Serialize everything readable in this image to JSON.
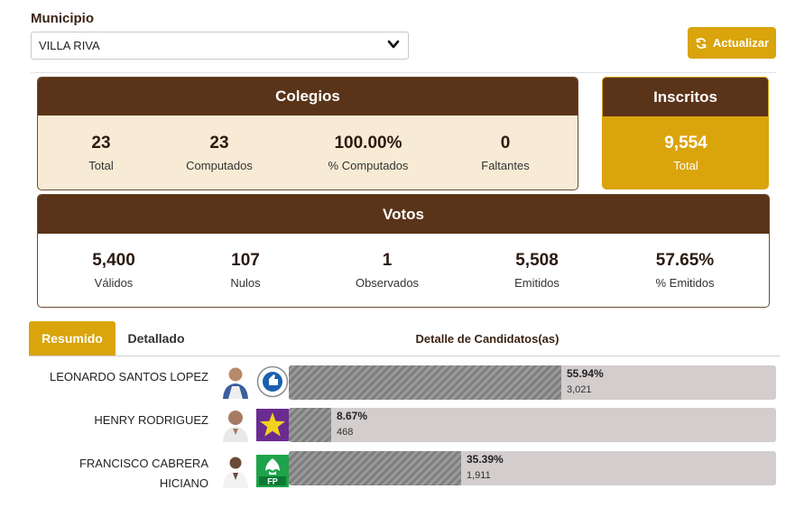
{
  "filter": {
    "label": "Municipio",
    "selected": "VILLA RIVA"
  },
  "refresh_label": "Actualizar",
  "colegios": {
    "title": "Colegios",
    "stats": [
      {
        "value": "23",
        "label": "Total"
      },
      {
        "value": "23",
        "label": "Computados"
      },
      {
        "value": "100.00%",
        "label": "% Computados"
      },
      {
        "value": "0",
        "label": "Faltantes"
      }
    ]
  },
  "inscritos": {
    "title": "Inscritos",
    "value": "9,554",
    "label": "Total"
  },
  "votos": {
    "title": "Votos",
    "stats": [
      {
        "value": "5,400",
        "label": "Válidos"
      },
      {
        "value": "107",
        "label": "Nulos"
      },
      {
        "value": "1",
        "label": "Observados"
      },
      {
        "value": "5,508",
        "label": "Emitidos"
      },
      {
        "value": "57.65%",
        "label": "% Emitidos"
      }
    ]
  },
  "tabs": {
    "resumido": "Resumido",
    "detallado": "Detallado"
  },
  "detail_title": "Detalle de Candidatos(as)",
  "colors": {
    "brown": "#5a3419",
    "gold": "#d9a40c",
    "cream": "#f7ebd5"
  },
  "candidates": [
    {
      "name_lines": [
        "LEONARDO SANTOS LOPEZ"
      ],
      "percent": "55.94%",
      "fraction": 0.5594,
      "votes": "3,021",
      "logo": "pld-logo-icon"
    },
    {
      "name_lines": [
        "HENRY RODRIGUEZ"
      ],
      "percent": "8.67%",
      "fraction": 0.0867,
      "votes": "468",
      "logo": "star-logo-icon"
    },
    {
      "name_lines": [
        "FRANCISCO CABRERA",
        "HICIANO"
      ],
      "percent": "35.39%",
      "fraction": 0.3539,
      "votes": "1,911",
      "logo": "fp-logo-icon",
      "logo_text": "FP"
    }
  ]
}
